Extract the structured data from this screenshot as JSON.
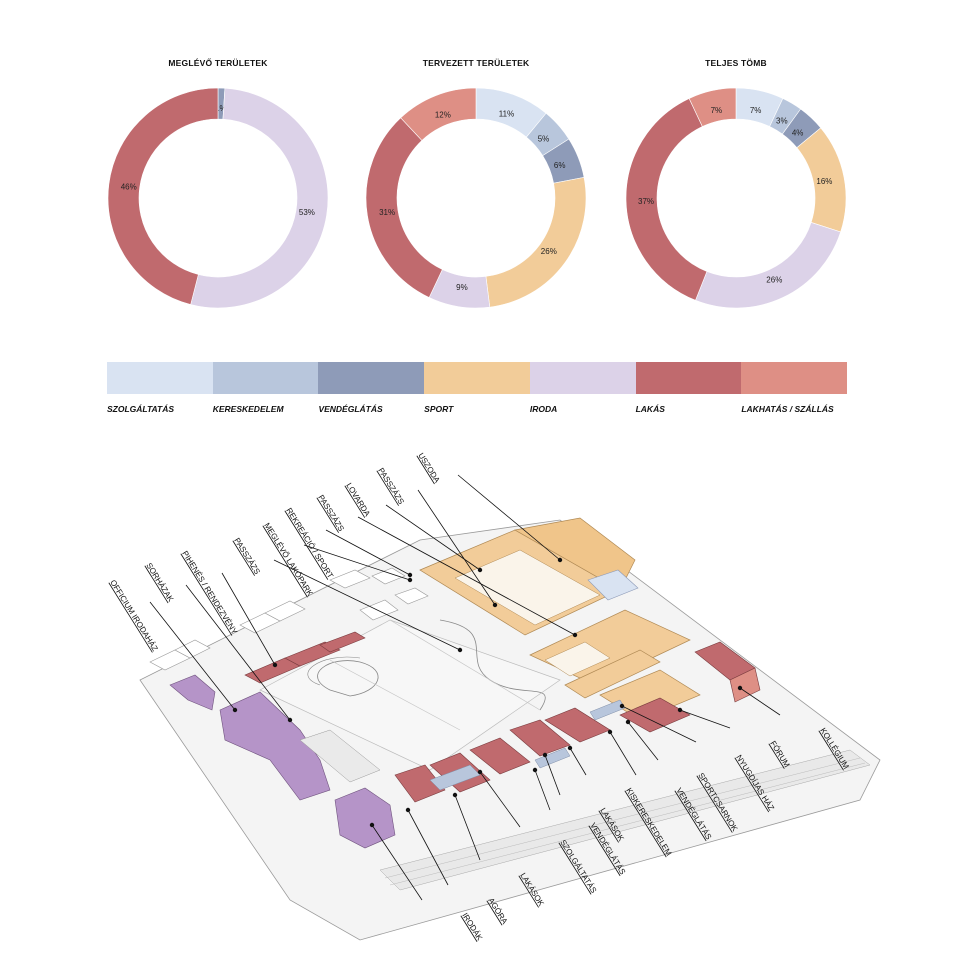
{
  "colors": {
    "szolgaltatas": "#d9e3f2",
    "kereskedelem": "#b8c6dc",
    "vendeglatas": "#8e9bb8",
    "sport": "#f2cc99",
    "iroda": "#dcd2e8",
    "lakas": "#c06a6e",
    "lakhatas": "#de8f85"
  },
  "legend": [
    "SZOLGÁLTATÁS",
    "KERESKEDELEM",
    "VENDÉGLÁTÁS",
    "SPORT",
    "IRODA",
    "LAKÁS",
    "LAKHATÁS / SZÁLLÁS"
  ],
  "chart_data": [
    {
      "type": "pie",
      "title": "MEGLÉVŐ TERÜLETEK",
      "slices": [
        {
          "category": "VENDÉGLÁTÁS",
          "value": 1,
          "label": "1%"
        },
        {
          "category": "IRODA",
          "value": 53,
          "label": "53%"
        },
        {
          "category": "LAKÁS",
          "value": 46,
          "label": "46%"
        }
      ]
    },
    {
      "type": "pie",
      "title": "TERVEZETT TERÜLETEK",
      "slices": [
        {
          "category": "SZOLGÁLTATÁS",
          "value": 11,
          "label": "11%"
        },
        {
          "category": "KERESKEDELEM",
          "value": 5,
          "label": "5%"
        },
        {
          "category": "VENDÉGLÁTÁS",
          "value": 6,
          "label": "6%"
        },
        {
          "category": "SPORT",
          "value": 26,
          "label": "26%"
        },
        {
          "category": "IRODA",
          "value": 9,
          "label": "9%"
        },
        {
          "category": "LAKÁS",
          "value": 31,
          "label": "31%"
        },
        {
          "category": "LAKHATÁS / SZÁLLÁS",
          "value": 12,
          "label": "12%"
        }
      ]
    },
    {
      "type": "pie",
      "title": "TELJES TÖMB",
      "slices": [
        {
          "category": "SZOLGÁLTATÁS",
          "value": 7,
          "label": "7%"
        },
        {
          "category": "KERESKEDELEM",
          "value": 3,
          "label": "3%"
        },
        {
          "category": "VENDÉGLÁTÁS",
          "value": 4,
          "label": "4%"
        },
        {
          "category": "SPORT",
          "value": 16,
          "label": "16%"
        },
        {
          "category": "IRODA",
          "value": 26,
          "label": "26%"
        },
        {
          "category": "LAKÁS",
          "value": 37,
          "label": "37%"
        },
        {
          "category": "LAKHATÁS / SZÁLLÁS",
          "value": 7,
          "label": "7%"
        }
      ]
    }
  ],
  "site_labels": [
    "USZODA",
    "PASSZÁZS",
    "LOVARDA",
    "PASSZÁZS",
    "REKREÁCIÓ / SPORT",
    "MEGLÉVŐ LAKÓPARK",
    "PASSZÁZS",
    "PIHENÉS / RENDEZVÉNY",
    "SORHÁZAK",
    "OFFICIUM IRODAHÁZ",
    "KOLLÉGIUM",
    "FÓRUM",
    "NYUGDÍJAS HÁZ",
    "SPORTCSARNOK",
    "VENDÉGLÁTÁS",
    "KISKERESKEDELEM",
    "LAKÁSOK",
    "VENDÉGLÁTÁS",
    "SZOLGÁLTATÁS",
    "LAKÁSOK",
    "AGÓRA",
    "IRODÁK"
  ]
}
